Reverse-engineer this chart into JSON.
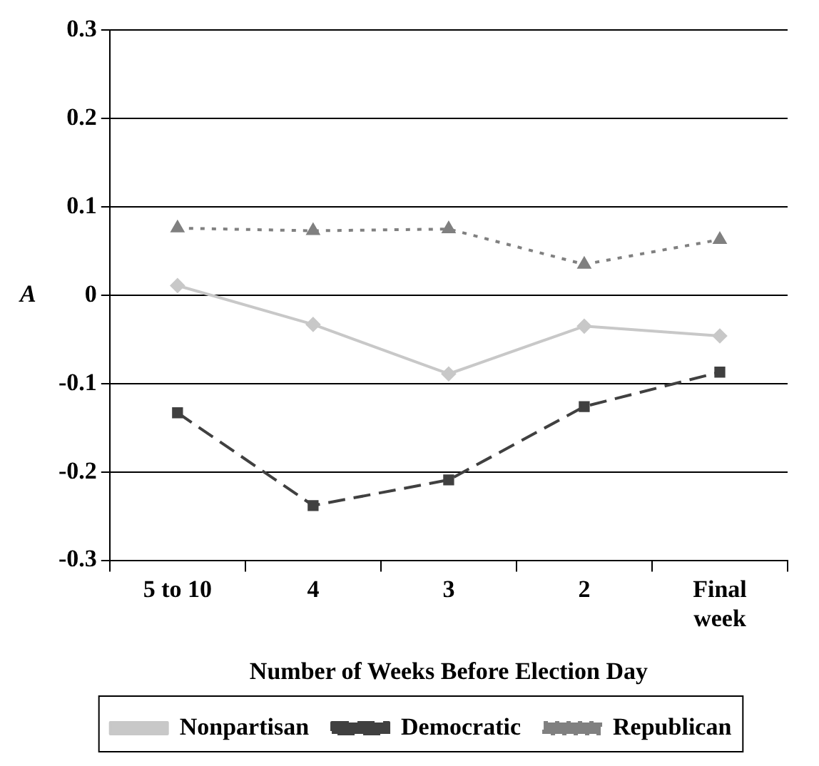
{
  "chart_data": {
    "type": "line",
    "xlabel": "Number of Weeks Before Election Day",
    "ylabel": "A",
    "categories": [
      "5 to 10",
      "4",
      "3",
      "2",
      "Final week"
    ],
    "series": [
      {
        "name": "Nonpartisan",
        "color": "#c8c8c8",
        "marker": "diamond",
        "line_style": "solid",
        "values": [
          0.011,
          -0.033,
          -0.089,
          -0.035,
          -0.046
        ]
      },
      {
        "name": "Democratic",
        "color": "#404040",
        "marker": "square",
        "line_style": "dashed",
        "values": [
          -0.133,
          -0.238,
          -0.209,
          -0.126,
          -0.087
        ]
      },
      {
        "name": "Republican",
        "color": "#808080",
        "marker": "triangle",
        "line_style": "dotted",
        "values": [
          0.076,
          0.073,
          0.075,
          0.035,
          0.063
        ]
      }
    ],
    "ylim": [
      -0.3,
      0.3
    ],
    "yticks": [
      -0.3,
      -0.2,
      -0.1,
      0,
      0.1,
      0.2,
      0.3
    ],
    "grid": "y",
    "legend": "bottom"
  }
}
